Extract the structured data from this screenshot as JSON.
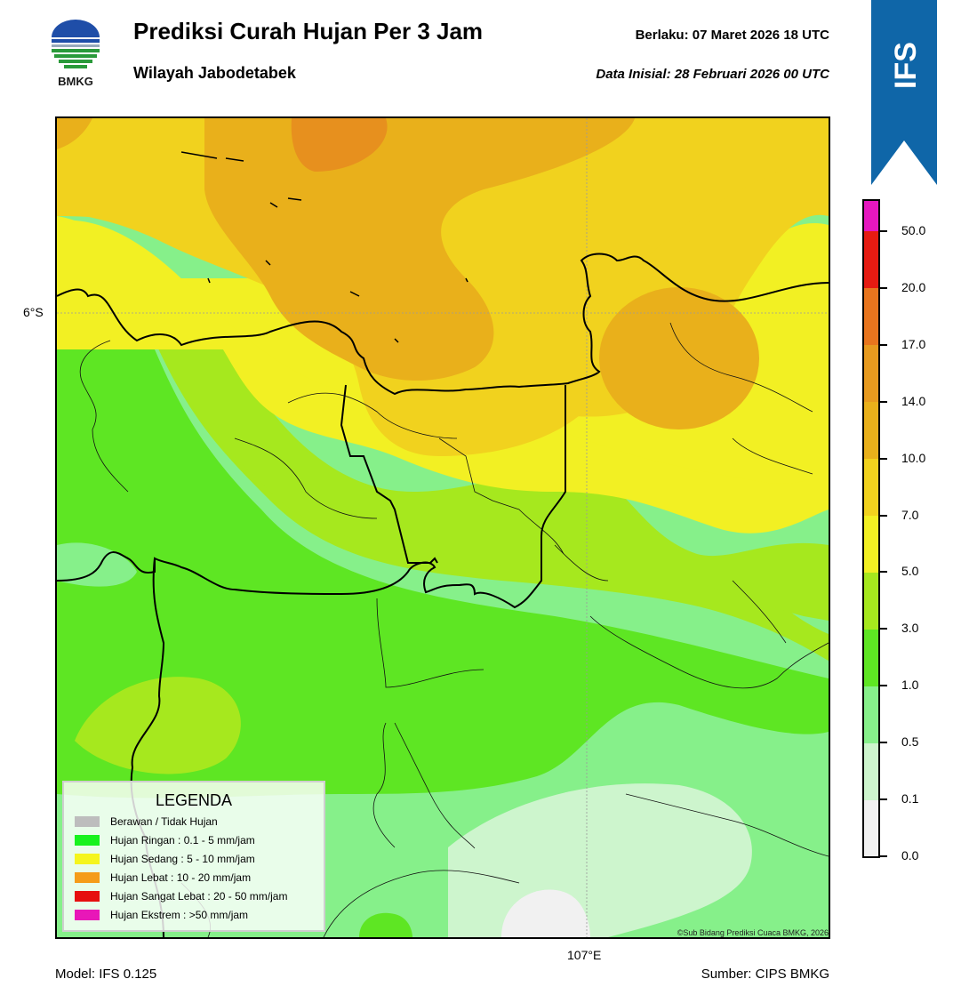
{
  "header": {
    "title": "Prediksi Curah Hujan Per 3 Jam",
    "subtitle": "Wilayah Jabodetabek",
    "valid_time": "Berlaku:  07 Maret 2026 18 UTC",
    "init_time": "Data Inisial:  28 Februari 2026 00 UTC"
  },
  "logo": {
    "text": "BMKG",
    "colors": {
      "blue": "#1f4ea8",
      "green": "#2a9a3a"
    }
  },
  "ribbon": {
    "text": "IFS",
    "color": "#0f66a8"
  },
  "map": {
    "lat_label": "6°S",
    "lon_label": "107°E",
    "copyright": "©Sub Bidang Prediksi Cuaca BMKG, 2026"
  },
  "footer": {
    "model": "Model: IFS 0.125",
    "source": "Sumber: CIPS BMKG"
  },
  "colorbar": {
    "levels": [
      "0.0",
      "0.1",
      "0.5",
      "1.0",
      "3.0",
      "5.0",
      "7.0",
      "10.0",
      "14.0",
      "17.0",
      "20.0",
      "50.0"
    ],
    "colors": [
      "#f1f1f1",
      "#cdf5cd",
      "#86f08a",
      "#5ee623",
      "#a6e81e",
      "#f2f023",
      "#f1d21e",
      "#e9b01b",
      "#e79a1f",
      "#e8751e",
      "#e61b12",
      "#e617bf"
    ]
  },
  "legend": {
    "title": "LEGENDA",
    "items": [
      {
        "label": "Berawan / Tidak Hujan",
        "color": "#bdbdbd"
      },
      {
        "label": "Hujan Ringan : 0.1 - 5 mm/jam",
        "color": "#18f21e"
      },
      {
        "label": "Hujan Sedang : 5 - 10 mm/jam",
        "color": "#f5f51e"
      },
      {
        "label": "Hujan Lebat : 10 - 20 mm/jam",
        "color": "#f59c1a"
      },
      {
        "label": "Hujan Sangat Lebat : 20 - 50 mm/jam",
        "color": "#e60f0f"
      },
      {
        "label": "Hujan Ekstrem : >50 mm/jam",
        "color": "#e817b8"
      }
    ]
  }
}
